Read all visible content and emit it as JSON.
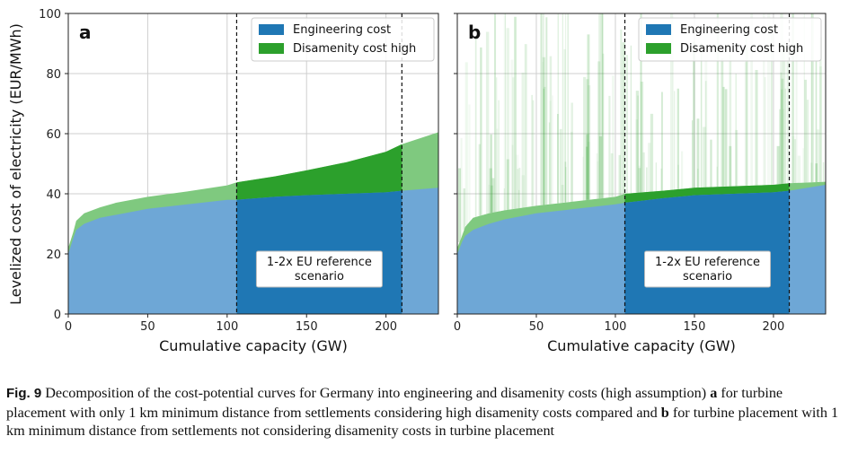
{
  "chart_data": [
    {
      "type": "area",
      "panel_label": "a",
      "xlabel": "Cumulative capacity (GW)",
      "ylabel": "Levelized cost of electricity (EUR/MWh)",
      "xlim": [
        0,
        233
      ],
      "ylim": [
        0,
        100
      ],
      "xticks": [
        "0",
        "50",
        "100",
        "150",
        "200"
      ],
      "yticks": [
        "0",
        "20",
        "40",
        "60",
        "80",
        "100"
      ],
      "grid": true,
      "legend_position": "top-right",
      "vlines": [
        106,
        210
      ],
      "annotation": [
        "1-2x EU reference",
        "scenario"
      ],
      "series": [
        {
          "name": "Engineering cost",
          "color": "#1f77b4",
          "x": [
            0,
            3,
            5,
            10,
            20,
            30,
            50,
            75,
            100,
            106,
            130,
            150,
            175,
            200,
            210,
            233
          ],
          "values": [
            20,
            25,
            28,
            30,
            32,
            33,
            35,
            36.5,
            38,
            38,
            39,
            39.5,
            40,
            40.5,
            41,
            42
          ]
        },
        {
          "name": "Disamenity cost high",
          "color": "#2ca02c",
          "x": [
            0,
            3,
            5,
            10,
            20,
            30,
            50,
            75,
            100,
            106,
            130,
            150,
            175,
            200,
            210,
            233
          ],
          "values": [
            22,
            27,
            31,
            33.5,
            35.5,
            37,
            39,
            40.8,
            42.8,
            43.8,
            45.8,
            47.8,
            50.5,
            54,
            56.5,
            60.5
          ]
        }
      ]
    },
    {
      "type": "area",
      "panel_label": "b",
      "xlabel": "Cumulative capacity (GW)",
      "ylabel": "",
      "xlim": [
        0,
        233
      ],
      "ylim": [
        0,
        100
      ],
      "xticks": [
        "0",
        "50",
        "100",
        "150",
        "200"
      ],
      "yticks": [],
      "grid": true,
      "legend_position": "top-right",
      "vlines": [
        106,
        210
      ],
      "annotation": [
        "1-2x EU reference",
        "scenario"
      ],
      "series": [
        {
          "name": "Engineering cost",
          "color": "#1f77b4",
          "x": [
            0,
            3,
            5,
            10,
            20,
            30,
            50,
            75,
            100,
            106,
            130,
            150,
            175,
            200,
            210,
            233
          ],
          "values": [
            20,
            24,
            26,
            28,
            30,
            31.5,
            33.5,
            35,
            36.5,
            37,
            38.5,
            39.5,
            40,
            40.5,
            41,
            43
          ]
        },
        {
          "name": "Disamenity cost high",
          "color": "#2ca02c",
          "x": [
            0,
            3,
            5,
            10,
            20,
            30,
            50,
            75,
            100,
            106,
            130,
            150,
            175,
            200,
            210,
            233
          ],
          "values": [
            22,
            26,
            29,
            32,
            33.5,
            34.5,
            36,
            37.5,
            39,
            40,
            41,
            42,
            42.5,
            43,
            43.5,
            44
          ]
        }
      ]
    }
  ],
  "caption": {
    "label": "Fig. 9",
    "text_1": "Decomposition of the cost-potential curves for Germany into engineering and disamenity costs (high assumption)",
    "bold_a": "a",
    "text_2": "for turbine placement with only 1 km minimum distance from settlements considering high disamenity costs compared and",
    "bold_b": "b",
    "text_3": "for turbine placement with 1 km minimum distance from settlements not considering disamenity costs in turbine placement"
  },
  "colors": {
    "engineering": "#1f77b4",
    "engineering_light": "#6ea7d6",
    "disamenity": "#2ca02c",
    "disamenity_light": "#7fc97f"
  }
}
